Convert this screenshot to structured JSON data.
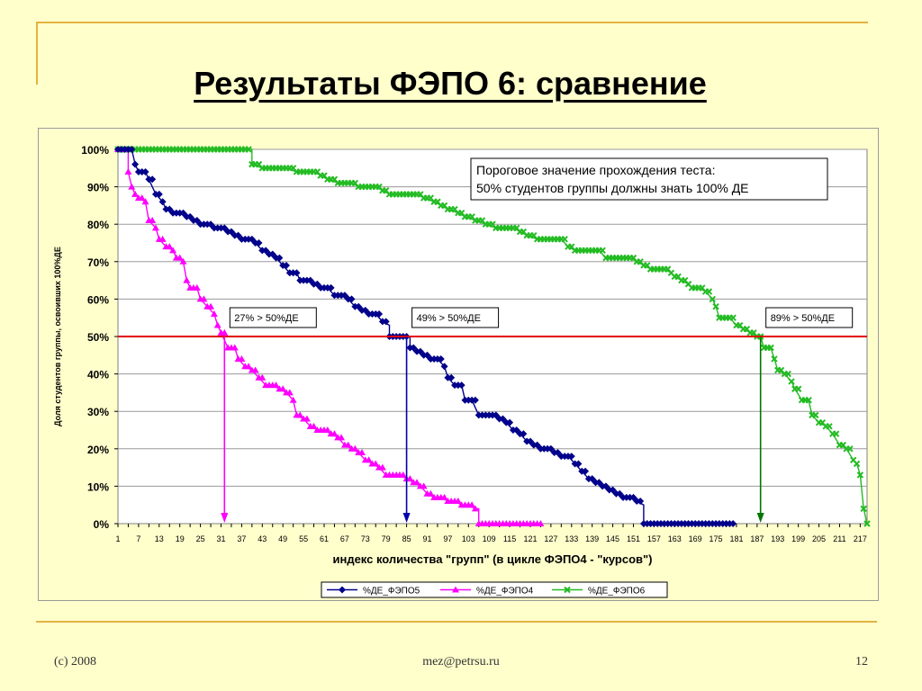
{
  "slide": {
    "title": "Результаты ФЭПО 6: сравнение",
    "footer_left": "(c) 2008",
    "footer_center": "mez@petrsu.ru",
    "page_number": "12"
  },
  "chart_data": {
    "type": "line",
    "xlabel": "индекс количества \"групп\" (в цикле ФЭПО4 - \"курсов\")",
    "ylabel": "Доля студентов группы, освоивших 100%ДЕ",
    "ylim": [
      0,
      1
    ],
    "y_ticks": [
      "0%",
      "10%",
      "20%",
      "30%",
      "40%",
      "50%",
      "60%",
      "70%",
      "80%",
      "90%",
      "100%"
    ],
    "x_ticks": [
      1,
      7,
      13,
      19,
      25,
      31,
      37,
      43,
      49,
      55,
      61,
      67,
      73,
      79,
      85,
      91,
      97,
      103,
      109,
      115,
      121,
      127,
      133,
      139,
      145,
      151,
      157,
      163,
      169,
      175,
      181,
      187,
      193,
      199,
      205,
      211,
      217
    ],
    "xlim": [
      1,
      217
    ],
    "grid": "horizontal",
    "legend_position": "bottom",
    "threshold": {
      "value": 0.5,
      "color": "#e00000"
    },
    "annotation_box": {
      "line1": "Пороговое значение прохождения теста:",
      "line2": "50% студентов группы должны знать 100% ДЕ"
    },
    "callouts": [
      {
        "label": "27% > 50%ДЕ",
        "x": 32,
        "color": "#ff00ff"
      },
      {
        "label": "49% > 50%ДЕ",
        "x": 85,
        "color": "#0000aa"
      },
      {
        "label": "89% > 50%ДЕ",
        "x": 188,
        "color": "#007700"
      }
    ],
    "series": [
      {
        "name": "%ДЕ_ФЭПО5",
        "color": "#00008b",
        "marker": "diamond",
        "points": [
          [
            1,
            1
          ],
          [
            5,
            1
          ],
          [
            6,
            0.96
          ],
          [
            7,
            0.94
          ],
          [
            9,
            0.94
          ],
          [
            10,
            0.92
          ],
          [
            12,
            0.88
          ],
          [
            14,
            0.86
          ],
          [
            15,
            0.84
          ],
          [
            17,
            0.83
          ],
          [
            19,
            0.83
          ],
          [
            21,
            0.82
          ],
          [
            23,
            0.81
          ],
          [
            25,
            0.8
          ],
          [
            27,
            0.8
          ],
          [
            29,
            0.79
          ],
          [
            31,
            0.79
          ],
          [
            33,
            0.78
          ],
          [
            35,
            0.77
          ],
          [
            37,
            0.76
          ],
          [
            39,
            0.76
          ],
          [
            41,
            0.75
          ],
          [
            43,
            0.73
          ],
          [
            45,
            0.72
          ],
          [
            47,
            0.71
          ],
          [
            49,
            0.69
          ],
          [
            51,
            0.67
          ],
          [
            53,
            0.67
          ],
          [
            54,
            0.65
          ],
          [
            56,
            0.65
          ],
          [
            58,
            0.64
          ],
          [
            60,
            0.63
          ],
          [
            62,
            0.63
          ],
          [
            64,
            0.61
          ],
          [
            66,
            0.61
          ],
          [
            68,
            0.6
          ],
          [
            70,
            0.58
          ],
          [
            72,
            0.57
          ],
          [
            74,
            0.56
          ],
          [
            76,
            0.56
          ],
          [
            78,
            0.54
          ],
          [
            80,
            0.53
          ],
          [
            80,
            0.5
          ],
          [
            86,
            0.5
          ],
          [
            86,
            0.47
          ],
          [
            88,
            0.46
          ],
          [
            90,
            0.45
          ],
          [
            92,
            0.44
          ],
          [
            94,
            0.44
          ],
          [
            96,
            0.42
          ],
          [
            97,
            0.39
          ],
          [
            99,
            0.37
          ],
          [
            101,
            0.37
          ],
          [
            102,
            0.33
          ],
          [
            104,
            0.33
          ],
          [
            106,
            0.29
          ],
          [
            108,
            0.29
          ],
          [
            110,
            0.29
          ],
          [
            112,
            0.28
          ],
          [
            114,
            0.27
          ],
          [
            116,
            0.25
          ],
          [
            118,
            0.24
          ],
          [
            120,
            0.22
          ],
          [
            122,
            0.21
          ],
          [
            124,
            0.2
          ],
          [
            126,
            0.2
          ],
          [
            128,
            0.19
          ],
          [
            130,
            0.18
          ],
          [
            132,
            0.18
          ],
          [
            134,
            0.16
          ],
          [
            136,
            0.14
          ],
          [
            138,
            0.12
          ],
          [
            140,
            0.11
          ],
          [
            142,
            0.1
          ],
          [
            144,
            0.09
          ],
          [
            146,
            0.08
          ],
          [
            148,
            0.07
          ],
          [
            150,
            0.07
          ],
          [
            152,
            0.06
          ],
          [
            154,
            0.05
          ],
          [
            154,
            0
          ],
          [
            180,
            0
          ]
        ]
      },
      {
        "name": "%ДЕ_ФЭПО4",
        "color": "#ff00ff",
        "marker": "triangle",
        "points": [
          [
            1,
            1
          ],
          [
            4,
            1
          ],
          [
            4,
            0.94
          ],
          [
            5,
            0.9
          ],
          [
            6,
            0.88
          ],
          [
            7,
            0.87
          ],
          [
            9,
            0.86
          ],
          [
            10,
            0.81
          ],
          [
            12,
            0.79
          ],
          [
            13,
            0.76
          ],
          [
            15,
            0.74
          ],
          [
            17,
            0.73
          ],
          [
            18,
            0.71
          ],
          [
            20,
            0.7
          ],
          [
            21,
            0.65
          ],
          [
            22,
            0.63
          ],
          [
            24,
            0.63
          ],
          [
            25,
            0.6
          ],
          [
            27,
            0.58
          ],
          [
            29,
            0.56
          ],
          [
            30,
            0.53
          ],
          [
            31,
            0.51
          ],
          [
            33,
            0.47
          ],
          [
            35,
            0.47
          ],
          [
            36,
            0.44
          ],
          [
            38,
            0.42
          ],
          [
            40,
            0.41
          ],
          [
            42,
            0.39
          ],
          [
            44,
            0.37
          ],
          [
            46,
            0.37
          ],
          [
            48,
            0.36
          ],
          [
            50,
            0.35
          ],
          [
            52,
            0.33
          ],
          [
            53,
            0.29
          ],
          [
            55,
            0.28
          ],
          [
            57,
            0.26
          ],
          [
            59,
            0.25
          ],
          [
            61,
            0.25
          ],
          [
            63,
            0.24
          ],
          [
            65,
            0.23
          ],
          [
            67,
            0.21
          ],
          [
            69,
            0.2
          ],
          [
            71,
            0.19
          ],
          [
            73,
            0.17
          ],
          [
            75,
            0.16
          ],
          [
            77,
            0.15
          ],
          [
            79,
            0.13
          ],
          [
            81,
            0.13
          ],
          [
            83,
            0.13
          ],
          [
            85,
            0.12
          ],
          [
            87,
            0.11
          ],
          [
            89,
            0.1
          ],
          [
            91,
            0.08
          ],
          [
            93,
            0.07
          ],
          [
            95,
            0.07
          ],
          [
            97,
            0.06
          ],
          [
            99,
            0.06
          ],
          [
            101,
            0.05
          ],
          [
            103,
            0.05
          ],
          [
            105,
            0.04
          ],
          [
            106,
            0.04
          ],
          [
            106,
            0
          ],
          [
            124,
            0
          ]
        ]
      },
      {
        "name": "%ДЕ_ФЭПО6",
        "color": "#22bb22",
        "marker": "x",
        "points": [
          [
            1,
            1
          ],
          [
            40,
            1
          ],
          [
            40,
            0.96
          ],
          [
            43,
            0.95
          ],
          [
            50,
            0.95
          ],
          [
            53,
            0.94
          ],
          [
            58,
            0.94
          ],
          [
            60,
            0.93
          ],
          [
            62,
            0.92
          ],
          [
            65,
            0.91
          ],
          [
            69,
            0.91
          ],
          [
            71,
            0.9
          ],
          [
            76,
            0.9
          ],
          [
            78,
            0.89
          ],
          [
            80,
            0.88
          ],
          [
            88,
            0.88
          ],
          [
            90,
            0.87
          ],
          [
            93,
            0.86
          ],
          [
            95,
            0.85
          ],
          [
            97,
            0.84
          ],
          [
            100,
            0.83
          ],
          [
            102,
            0.82
          ],
          [
            105,
            0.81
          ],
          [
            108,
            0.8
          ],
          [
            111,
            0.79
          ],
          [
            116,
            0.79
          ],
          [
            118,
            0.78
          ],
          [
            120,
            0.77
          ],
          [
            123,
            0.76
          ],
          [
            130,
            0.76
          ],
          [
            132,
            0.74
          ],
          [
            134,
            0.73
          ],
          [
            141,
            0.73
          ],
          [
            143,
            0.71
          ],
          [
            150,
            0.71
          ],
          [
            152,
            0.7
          ],
          [
            154,
            0.69
          ],
          [
            156,
            0.68
          ],
          [
            160,
            0.68
          ],
          [
            162,
            0.67
          ],
          [
            163,
            0.66
          ],
          [
            165,
            0.65
          ],
          [
            167,
            0.64
          ],
          [
            168,
            0.63
          ],
          [
            170,
            0.63
          ],
          [
            172,
            0.62
          ],
          [
            174,
            0.6
          ],
          [
            175,
            0.58
          ],
          [
            176,
            0.55
          ],
          [
            179,
            0.55
          ],
          [
            181,
            0.53
          ],
          [
            183,
            0.52
          ],
          [
            185,
            0.51
          ],
          [
            187,
            0.5
          ],
          [
            188,
            0.5
          ],
          [
            189,
            0.47
          ],
          [
            191,
            0.47
          ],
          [
            192,
            0.44
          ],
          [
            193,
            0.41
          ],
          [
            195,
            0.4
          ],
          [
            197,
            0.38
          ],
          [
            198,
            0.36
          ],
          [
            200,
            0.33
          ],
          [
            202,
            0.33
          ],
          [
            203,
            0.29
          ],
          [
            205,
            0.27
          ],
          [
            207,
            0.26
          ],
          [
            209,
            0.24
          ],
          [
            211,
            0.21
          ],
          [
            213,
            0.2
          ],
          [
            215,
            0.17
          ],
          [
            216,
            0.16
          ],
          [
            217,
            0.13
          ],
          [
            218,
            0.04
          ],
          [
            219,
            0
          ]
        ]
      }
    ]
  }
}
